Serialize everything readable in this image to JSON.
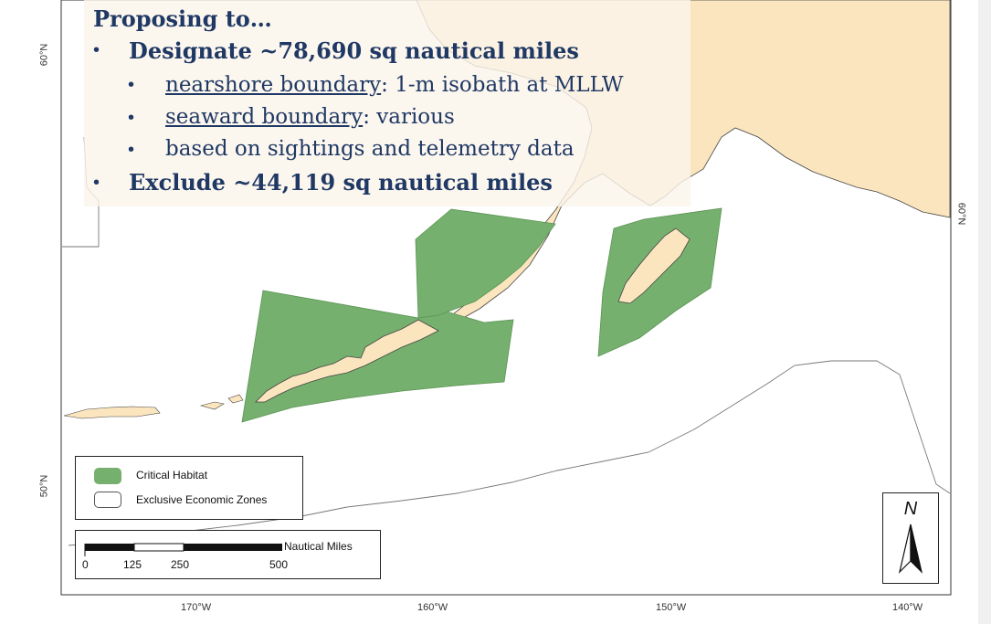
{
  "overlay": {
    "heading": "Proposing to…",
    "bullet_char": "•",
    "items": [
      {
        "text": "Designate ~78,690 sq nautical miles"
      },
      {
        "underline": "nearshore boundary",
        "rest": ": 1-m isobath at MLLW"
      },
      {
        "underline": "seaward boundary",
        "rest": ": various"
      },
      {
        "text": "based on sightings and telemetry data"
      },
      {
        "text": "Exclude ~44,119 sq nautical miles"
      }
    ]
  },
  "legend": {
    "items": [
      {
        "label": "Critical Habitat",
        "color": "#76b06e"
      },
      {
        "label": "Exclusive Economic Zones",
        "color": "#ffffff"
      }
    ]
  },
  "scalebar": {
    "unit_label": "Nautical Miles",
    "ticks": [
      "0",
      "125",
      "250",
      "500"
    ]
  },
  "north": {
    "letter": "N"
  },
  "axes": {
    "x_ticks": [
      "170°W",
      "160°W",
      "150°W",
      "140°W"
    ],
    "left_lat_ticks": [
      "60°N",
      "50°N"
    ],
    "right_lat_ticks": [
      "60°N"
    ]
  },
  "colors": {
    "land": "#fbe5bf",
    "habitat": "#76b06e",
    "text": "#1f3864",
    "ocean": "#ffffff"
  }
}
